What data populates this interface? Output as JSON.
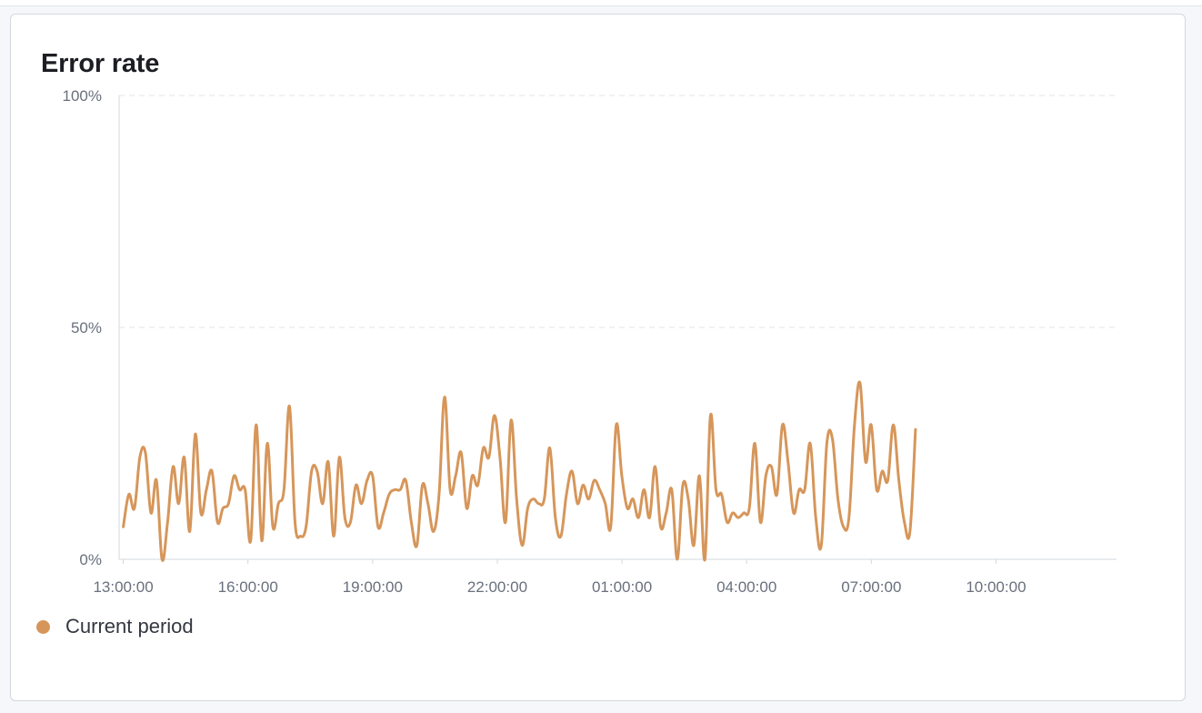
{
  "panel": {
    "title": "Error rate"
  },
  "colors": {
    "series": "#d6965a",
    "grid": "#e3e6ea",
    "axis": "#d3d8de"
  },
  "chart_data": {
    "type": "line",
    "title": "Error rate",
    "xlabel": "",
    "ylabel": "",
    "ylim": [
      0,
      100
    ],
    "y_ticks": [
      {
        "value": 100,
        "label": "100%"
      },
      {
        "value": 50,
        "label": "50%"
      },
      {
        "value": 0,
        "label": "0%"
      }
    ],
    "x_ticks": [
      "13:00:00",
      "16:00:00",
      "19:00:00",
      "22:00:00",
      "01:00:00",
      "04:00:00",
      "07:00:00",
      "10:00:00"
    ],
    "x_tick_positions_hours": [
      0,
      3,
      6,
      9,
      12,
      15,
      18,
      21
    ],
    "xlim_hours": [
      -0.1,
      23.9
    ],
    "grid": "horizontal dashed",
    "legend_position": "bottom-left",
    "series": [
      {
        "name": "Current period",
        "x_step_hours": 0.1333,
        "values": [
          7,
          14,
          11,
          22,
          23,
          10,
          17,
          0,
          8,
          20,
          12,
          22,
          6,
          27,
          10,
          15,
          19,
          8,
          11,
          12,
          18,
          15,
          15,
          4,
          29,
          4,
          25,
          7,
          12,
          15,
          33,
          8,
          5,
          7,
          19,
          19,
          12,
          21,
          5,
          22,
          9,
          8,
          16,
          12,
          17,
          18,
          7,
          10,
          14,
          15,
          15,
          17,
          8,
          3,
          16,
          12,
          6,
          14,
          35,
          15,
          18,
          23,
          11,
          18,
          16,
          24,
          22,
          31,
          22,
          8,
          30,
          13,
          3,
          11,
          13,
          12,
          13,
          24,
          9,
          5,
          14,
          19,
          12,
          16,
          13,
          17,
          15,
          12,
          7,
          29,
          18,
          11,
          13,
          9,
          15,
          9,
          20,
          7,
          10,
          15,
          0,
          16,
          13,
          3,
          18,
          0,
          31,
          15,
          14,
          8,
          10,
          9,
          10,
          11,
          25,
          8,
          18,
          20,
          14,
          29,
          21,
          10,
          15,
          15,
          25,
          9,
          3,
          25,
          26,
          13,
          7,
          9,
          29,
          38,
          21,
          29,
          15,
          19,
          17,
          29,
          17,
          8,
          6,
          28
        ]
      }
    ]
  }
}
